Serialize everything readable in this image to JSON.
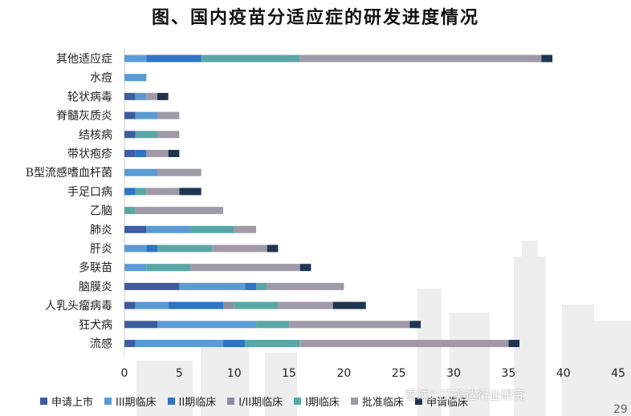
{
  "title": "图、国内疫苗分适应症的研发进度情况",
  "watermark": "雪球：艾美达行业研究",
  "page_number": "29",
  "colors": {
    "申请上市": "#3d5da0",
    "III期临床": "#5b9bd5",
    "II期临床": "#2e75c5",
    "I/II期临床": "#8a8fa0",
    "I期临床": "#5aa7a7",
    "批准临床": "#a09aa6",
    "申请临床": "#1f3552"
  },
  "chart_data": {
    "type": "bar",
    "orientation": "horizontal",
    "stacked": true,
    "title": "图、国内疫苗分适应症的研发进度情况",
    "xlim": [
      0,
      45
    ],
    "xticks": [
      0,
      5,
      10,
      15,
      20,
      25,
      30,
      35,
      40,
      45
    ],
    "grid": false,
    "legend_position": "bottom",
    "categories": [
      "其他适应症",
      "水痘",
      "轮状病毒",
      "脊髓灰质炎",
      "结核病",
      "带状疱疹",
      "B型流感嗜血杆菌",
      "手足口病",
      "乙脑",
      "肺炎",
      "肝炎",
      "多联苗",
      "脑膜炎",
      "人乳头瘤病毒",
      "狂犬病",
      "流感"
    ],
    "series": [
      {
        "name": "申请上市",
        "values": [
          0,
          0,
          1,
          1,
          1,
          1,
          0,
          0,
          0,
          2,
          0,
          0,
          5,
          1,
          3,
          1
        ]
      },
      {
        "name": "III期临床",
        "values": [
          2,
          2,
          1,
          2,
          0,
          0,
          3,
          0,
          0,
          4,
          2,
          2,
          6,
          3,
          9,
          8
        ]
      },
      {
        "name": "II期临床",
        "values": [
          5,
          0,
          0,
          0,
          0,
          1,
          0,
          1,
          0,
          0,
          1,
          0,
          1,
          5,
          0,
          2
        ]
      },
      {
        "name": "I/II期临床",
        "values": [
          0,
          0,
          0,
          0,
          0,
          0,
          0,
          0,
          0,
          0,
          0,
          0,
          0,
          1,
          0,
          0
        ]
      },
      {
        "name": "I期临床",
        "values": [
          9,
          0,
          0,
          0,
          2,
          0,
          0,
          1,
          1,
          4,
          5,
          4,
          1,
          4,
          3,
          5
        ]
      },
      {
        "name": "批准临床",
        "values": [
          22,
          0,
          1,
          2,
          2,
          2,
          4,
          3,
          8,
          2,
          5,
          10,
          7,
          5,
          11,
          19
        ]
      },
      {
        "name": "申请临床",
        "values": [
          1,
          0,
          1,
          0,
          0,
          1,
          0,
          2,
          0,
          0,
          1,
          1,
          0,
          3,
          1,
          1
        ]
      }
    ]
  },
  "legend": {
    "items": [
      {
        "label": "申请上市"
      },
      {
        "label": "III期临床"
      },
      {
        "label": "II期临床"
      },
      {
        "label": "I/II期临床"
      },
      {
        "label": "I期临床"
      },
      {
        "label": "批准临床"
      },
      {
        "label": "申请临床"
      }
    ]
  }
}
